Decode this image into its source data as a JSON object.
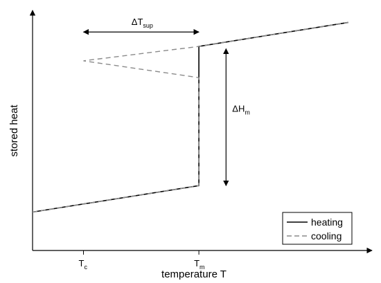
{
  "chart_data": {
    "type": "line",
    "title": "",
    "xlabel": "temperature T",
    "ylabel": "stored heat",
    "xlim": [
      0,
      100
    ],
    "ylim": [
      0,
      100
    ],
    "ticks": [
      {
        "label_main": "T",
        "label_sub": "c",
        "x": 15
      },
      {
        "label_main": "T",
        "label_sub": "m",
        "x": 49
      }
    ],
    "series": [
      {
        "name": "heating",
        "style": "solid",
        "color": "#000000",
        "points": [
          [
            0,
            16
          ],
          [
            49,
            27
          ],
          [
            49,
            85
          ],
          [
            93,
            95
          ]
        ]
      },
      {
        "name": "cooling",
        "style": "dashed",
        "color": "#8a8a8a",
        "points": [
          [
            0,
            16
          ],
          [
            49,
            27
          ],
          [
            49,
            72
          ],
          [
            15,
            79
          ],
          [
            49,
            85
          ],
          [
            93,
            95
          ]
        ]
      }
    ],
    "annotations": [
      {
        "id": "dT",
        "label_main": "ΔT",
        "label_sub": "sup",
        "type": "double-arrow-horizontal",
        "from": [
          15,
          91
        ],
        "to": [
          49,
          91
        ]
      },
      {
        "id": "dH",
        "label_main": "ΔH",
        "label_sub": "m",
        "type": "double-arrow-vertical",
        "from": [
          57,
          84
        ],
        "to": [
          57,
          27
        ]
      }
    ],
    "legend": {
      "position": "bottom-right",
      "entries": [
        {
          "label": "heating",
          "style": "solid",
          "color": "#000000"
        },
        {
          "label": "cooling",
          "style": "dashed",
          "color": "#8a8a8a"
        }
      ]
    },
    "grid": false
  }
}
